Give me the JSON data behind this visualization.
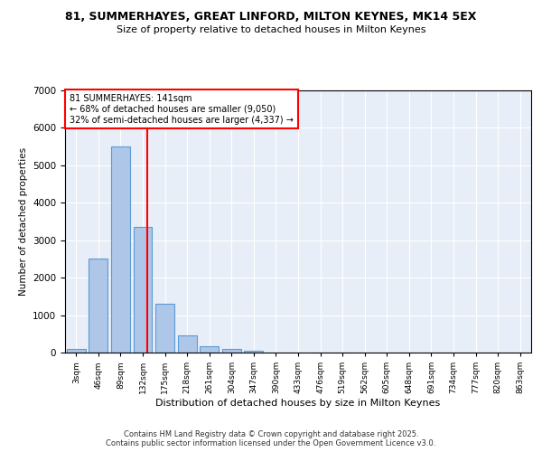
{
  "title_line1": "81, SUMMERHAYES, GREAT LINFORD, MILTON KEYNES, MK14 5EX",
  "title_line2": "Size of property relative to detached houses in Milton Keynes",
  "xlabel": "Distribution of detached houses by size in Milton Keynes",
  "ylabel": "Number of detached properties",
  "categories": [
    "3sqm",
    "46sqm",
    "89sqm",
    "132sqm",
    "175sqm",
    "218sqm",
    "261sqm",
    "304sqm",
    "347sqm",
    "390sqm",
    "433sqm",
    "476sqm",
    "519sqm",
    "562sqm",
    "605sqm",
    "648sqm",
    "691sqm",
    "734sqm",
    "777sqm",
    "820sqm",
    "863sqm"
  ],
  "values": [
    100,
    2500,
    5500,
    3350,
    1300,
    450,
    175,
    90,
    50,
    0,
    0,
    0,
    0,
    0,
    0,
    0,
    0,
    0,
    0,
    0,
    0
  ],
  "bar_color": "#aec6e8",
  "bar_edge_color": "#5b9bd5",
  "property_line_color": "red",
  "annotation_text": "81 SUMMERHAYES: 141sqm\n← 68% of detached houses are smaller (9,050)\n32% of semi-detached houses are larger (4,337) →",
  "ylim": [
    0,
    7000
  ],
  "yticks": [
    0,
    1000,
    2000,
    3000,
    4000,
    5000,
    6000,
    7000
  ],
  "background_color": "#e8eef7",
  "grid_color": "white",
  "footer_line1": "Contains HM Land Registry data © Crown copyright and database right 2025.",
  "footer_line2": "Contains public sector information licensed under the Open Government Licence v3.0."
}
